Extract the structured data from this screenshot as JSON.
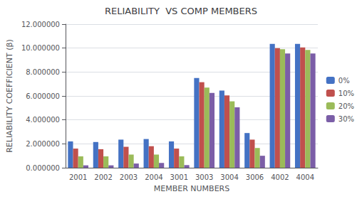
{
  "chart_data": {
    "type": "bar",
    "title": "RELIABILITY  VS COMP MEMBERS",
    "xlabel": "MEMBER NUMBERS",
    "ylabel": "RELIABILITY COEFFICIENT (β)",
    "categories": [
      "2001",
      "2002",
      "2003",
      "2004",
      "3001",
      "3003",
      "3004",
      "3006",
      "4002",
      "4004"
    ],
    "series": [
      {
        "name": "0%",
        "color": "#4472C4",
        "values": [
          2.2,
          2.15,
          2.35,
          2.4,
          2.2,
          7.5,
          6.45,
          2.9,
          10.35,
          10.35
        ]
      },
      {
        "name": "10%",
        "color": "#C0504D",
        "values": [
          1.6,
          1.55,
          1.75,
          1.8,
          1.6,
          7.15,
          6.05,
          2.35,
          10.0,
          10.05
        ]
      },
      {
        "name": "20%",
        "color": "#9BBB59",
        "values": [
          0.95,
          0.95,
          1.1,
          1.1,
          0.95,
          6.7,
          5.55,
          1.65,
          9.9,
          9.85
        ]
      },
      {
        "name": "30%",
        "color": "#7B5EA7",
        "values": [
          0.2,
          0.2,
          0.35,
          0.4,
          0.22,
          6.25,
          5.05,
          1.0,
          9.55,
          9.55
        ]
      }
    ],
    "ylim": [
      0,
      12.0
    ],
    "yticks": [
      {
        "value": 0.0,
        "label": "0.000000"
      },
      {
        "value": 2.0,
        "label": "2.000000"
      },
      {
        "value": 4.0,
        "label": "4.000000"
      },
      {
        "value": 6.0,
        "label": "6.000000"
      },
      {
        "value": 8.0,
        "label": "8.000000"
      },
      {
        "value": 10.0,
        "label": "10.000000"
      },
      {
        "value": 12.0,
        "label": "12.000000"
      }
    ],
    "grid": true,
    "legend": "right"
  }
}
